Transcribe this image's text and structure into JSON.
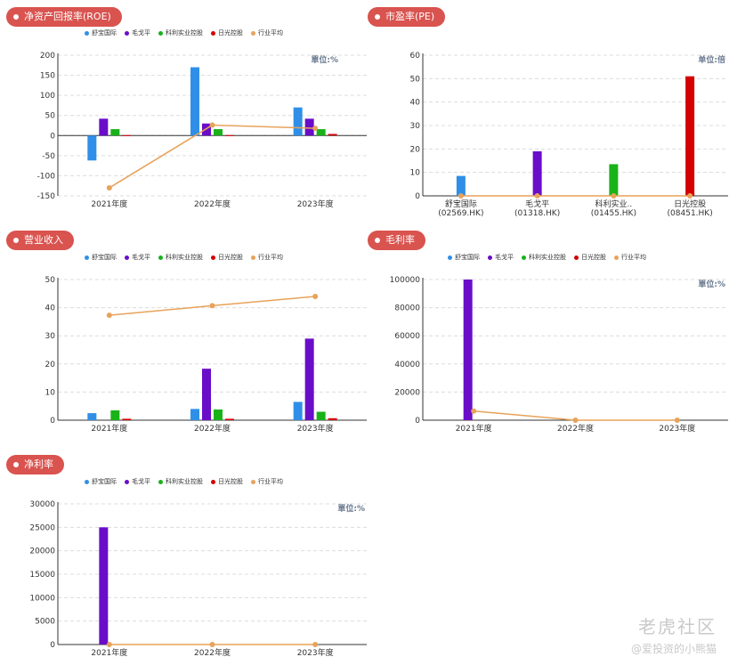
{
  "colors": {
    "badge": "#d9534f",
    "series": [
      "#2f8fe8",
      "#6a0dc8",
      "#19b219",
      "#d40000"
    ],
    "avg": "#e8a25a"
  },
  "legend": [
    "舒宝国际",
    "毛戈平",
    "科利实业控股",
    "日光控股",
    "行业平均"
  ],
  "watermark": {
    "main": "老虎社区",
    "sub": "@爱投资的小熊猫"
  },
  "chart_data": [
    {
      "id": "roe",
      "type": "bar",
      "title": "净资产回报率(ROE)",
      "unit": "單位:%",
      "categories": [
        "2021年度",
        "2022年度",
        "2023年度"
      ],
      "series": [
        {
          "name": "舒宝国际",
          "values": [
            -62,
            170,
            70
          ]
        },
        {
          "name": "毛戈平",
          "values": [
            42,
            30,
            42
          ]
        },
        {
          "name": "科利实业控股",
          "values": [
            16,
            16,
            16
          ]
        },
        {
          "name": "日光控股",
          "values": [
            1,
            1,
            4
          ]
        }
      ],
      "line": {
        "name": "行业平均",
        "values": [
          -130,
          26,
          18
        ]
      },
      "ylim": [
        -150,
        200
      ],
      "yticks": [
        -150,
        -100,
        -50,
        0,
        50,
        100,
        150,
        200
      ]
    },
    {
      "id": "pe",
      "type": "bar",
      "title": "市盈率(PE)",
      "unit": "单位:倍",
      "categories": [
        "舒宝国际\n(02569.HK)",
        "毛戈平\n(01318.HK)",
        "科利实业..\n(01455.HK)",
        "日光控股\n(08451.HK)"
      ],
      "single_bars": [
        8.5,
        19,
        13.5,
        51
      ],
      "line": {
        "name": "行业平均",
        "values": [
          0,
          0,
          0,
          0
        ]
      },
      "ylim": [
        0,
        60
      ],
      "yticks": [
        0,
        10,
        20,
        30,
        40,
        50,
        60
      ]
    },
    {
      "id": "revenue",
      "type": "bar",
      "title": "营业收入",
      "unit": "",
      "categories": [
        "2021年度",
        "2022年度",
        "2023年度"
      ],
      "series": [
        {
          "name": "舒宝国际",
          "values": [
            2.5,
            4,
            6.5
          ]
        },
        {
          "name": "毛戈平",
          "values": [
            0,
            18.3,
            29
          ]
        },
        {
          "name": "科利实业控股",
          "values": [
            3.5,
            3.8,
            3
          ]
        },
        {
          "name": "日光控股",
          "values": [
            0.5,
            0.5,
            0.7
          ]
        }
      ],
      "line": {
        "name": "行业平均",
        "values": [
          37.3,
          40.7,
          44
        ]
      },
      "ylim": [
        0,
        50
      ],
      "yticks": [
        0,
        10,
        20,
        30,
        40,
        50
      ]
    },
    {
      "id": "gross",
      "type": "bar",
      "title": "毛利率",
      "unit": "單位:%",
      "categories": [
        "2021年度",
        "2022年度",
        "2023年度"
      ],
      "series": [
        {
          "name": "舒宝国际",
          "values": [
            0,
            0,
            0
          ]
        },
        {
          "name": "毛戈平",
          "values": [
            100000,
            0,
            0
          ]
        },
        {
          "name": "科利实业控股",
          "values": [
            0,
            0,
            0
          ]
        },
        {
          "name": "日光控股",
          "values": [
            0,
            0,
            0
          ]
        }
      ],
      "line": {
        "name": "行业平均",
        "values": [
          6500,
          0,
          0
        ]
      },
      "ylim": [
        0,
        100000
      ],
      "yticks": [
        0,
        20000,
        40000,
        60000,
        80000,
        100000
      ]
    },
    {
      "id": "netmargin",
      "type": "bar",
      "title": "净利率",
      "unit": "單位:%",
      "categories": [
        "2021年度",
        "2022年度",
        "2023年度"
      ],
      "series": [
        {
          "name": "舒宝国际",
          "values": [
            0,
            0,
            0
          ]
        },
        {
          "name": "毛戈平",
          "values": [
            25000,
            0,
            0
          ]
        },
        {
          "name": "科利实业控股",
          "values": [
            0,
            0,
            0
          ]
        },
        {
          "name": "日光控股",
          "values": [
            0,
            0,
            0
          ]
        }
      ],
      "line": {
        "name": "行业平均",
        "values": [
          0,
          0,
          0
        ]
      },
      "ylim": [
        0,
        30000
      ],
      "yticks": [
        0,
        5000,
        10000,
        15000,
        20000,
        25000,
        30000
      ]
    }
  ]
}
